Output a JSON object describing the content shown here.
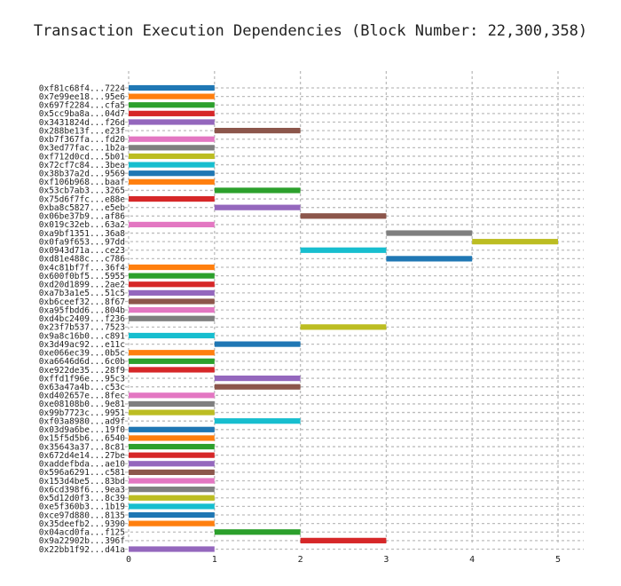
{
  "chart_data": {
    "type": "bar",
    "orientation": "horizontal-gantt",
    "title": "Transaction Execution Dependencies (Block Number: 22,300,358)",
    "xlim": [
      0,
      5.3
    ],
    "x_ticks": [
      "0",
      "1",
      "2",
      "3",
      "4",
      "5"
    ],
    "grid": true,
    "colors": [
      "#1f77b4",
      "#ff7f0e",
      "#2ca02c",
      "#d62728",
      "#9467bd",
      "#8c564b",
      "#e377c2",
      "#7f7f7f",
      "#bcbd22",
      "#17becf"
    ],
    "rows": [
      {
        "label": "0xf81c68f4...7224",
        "start": 0,
        "end": 1
      },
      {
        "label": "0x7e99ee18...95e6",
        "start": 0,
        "end": 1
      },
      {
        "label": "0x697f2284...cfa5",
        "start": 0,
        "end": 1
      },
      {
        "label": "0x5cc9ba8a...04d7",
        "start": 0,
        "end": 1
      },
      {
        "label": "0x3431824d...f26d",
        "start": 0,
        "end": 1
      },
      {
        "label": "0x288be13f...e23f",
        "start": 1,
        "end": 2
      },
      {
        "label": "0xb7f367fa...fd20",
        "start": 0,
        "end": 1
      },
      {
        "label": "0x3ed77fac...1b2a",
        "start": 0,
        "end": 1
      },
      {
        "label": "0xf712d0cd...5b01",
        "start": 0,
        "end": 1
      },
      {
        "label": "0x72cf7c84...3bea",
        "start": 0,
        "end": 1
      },
      {
        "label": "0x38b37a2d...9569",
        "start": 0,
        "end": 1
      },
      {
        "label": "0xf106b968...baaf",
        "start": 0,
        "end": 1
      },
      {
        "label": "0x53cb7ab3...3265",
        "start": 1,
        "end": 2
      },
      {
        "label": "0x75d6f7fc...e88e",
        "start": 0,
        "end": 1
      },
      {
        "label": "0xba8c5827...e5eb",
        "start": 1,
        "end": 2
      },
      {
        "label": "0x06be37b9...af86",
        "start": 2,
        "end": 3
      },
      {
        "label": "0x019c32eb...63a2",
        "start": 0,
        "end": 1
      },
      {
        "label": "0xa9bf1351...36a8",
        "start": 3,
        "end": 4
      },
      {
        "label": "0x0fa9f653...97dd",
        "start": 4,
        "end": 5
      },
      {
        "label": "0x0943d71a...ce23",
        "start": 2,
        "end": 3
      },
      {
        "label": "0xd81e488c...c786",
        "start": 3,
        "end": 4
      },
      {
        "label": "0x4c81bf7f...36f4",
        "start": 0,
        "end": 1
      },
      {
        "label": "0x600f0bf5...5955",
        "start": 0,
        "end": 1
      },
      {
        "label": "0xd20d1899...2ae2",
        "start": 0,
        "end": 1
      },
      {
        "label": "0xa7b3a1e5...51c5",
        "start": 0,
        "end": 1
      },
      {
        "label": "0xb6ceef32...8f67",
        "start": 0,
        "end": 1
      },
      {
        "label": "0xa95fbdd6...804b",
        "start": 0,
        "end": 1
      },
      {
        "label": "0xd4bc2409...f236",
        "start": 0,
        "end": 1
      },
      {
        "label": "0x23f7b537...7523",
        "start": 2,
        "end": 3
      },
      {
        "label": "0x9a8c16b0...c891",
        "start": 0,
        "end": 1
      },
      {
        "label": "0x3d49ac92...e11c",
        "start": 1,
        "end": 2
      },
      {
        "label": "0xe066ec39...0b5c",
        "start": 0,
        "end": 1
      },
      {
        "label": "0xa6646d6d...6c0b",
        "start": 0,
        "end": 1
      },
      {
        "label": "0xe922de35...28f9",
        "start": 0,
        "end": 1
      },
      {
        "label": "0xffd1f96e...95c3",
        "start": 1,
        "end": 2
      },
      {
        "label": "0x63a47a4b...c53c",
        "start": 1,
        "end": 2
      },
      {
        "label": "0xd402657e...8fec",
        "start": 0,
        "end": 1
      },
      {
        "label": "0xe08108b0...9e81",
        "start": 0,
        "end": 1
      },
      {
        "label": "0x99b7723c...9951",
        "start": 0,
        "end": 1
      },
      {
        "label": "0xf03a8980...ad9f",
        "start": 1,
        "end": 2
      },
      {
        "label": "0x03d9a6be...19f0",
        "start": 0,
        "end": 1
      },
      {
        "label": "0x15f5d5b6...6540",
        "start": 0,
        "end": 1
      },
      {
        "label": "0x35643a37...8c81",
        "start": 0,
        "end": 1
      },
      {
        "label": "0x672d4e14...27be",
        "start": 0,
        "end": 1
      },
      {
        "label": "0xaddefbda...ae10",
        "start": 0,
        "end": 1
      },
      {
        "label": "0x596a6291...c581",
        "start": 0,
        "end": 1
      },
      {
        "label": "0x153d4be5...83bd",
        "start": 0,
        "end": 1
      },
      {
        "label": "0x6cd398f6...9ea3",
        "start": 0,
        "end": 1
      },
      {
        "label": "0x5d12d0f3...8c39",
        "start": 0,
        "end": 1
      },
      {
        "label": "0xe5f360b3...1b19",
        "start": 0,
        "end": 1
      },
      {
        "label": "0xce97d880...8135",
        "start": 0,
        "end": 1
      },
      {
        "label": "0x35deefb2...9390",
        "start": 0,
        "end": 1
      },
      {
        "label": "0x04acd0fa...f125",
        "start": 1,
        "end": 2
      },
      {
        "label": "0x9a22902b...396f",
        "start": 2,
        "end": 3
      },
      {
        "label": "0x22bb1f92...d41a",
        "start": 0,
        "end": 1
      }
    ]
  }
}
